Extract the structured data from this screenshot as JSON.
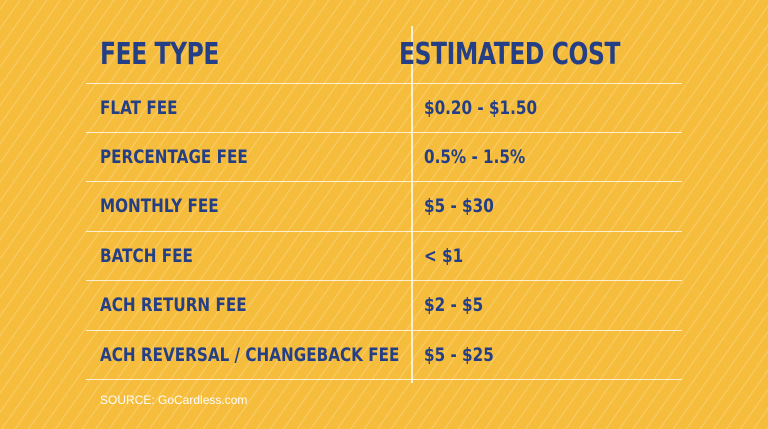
{
  "table": {
    "headers": [
      "FEE TYPE",
      "ESTIMATED COST"
    ],
    "rows": [
      {
        "fee_type": "FLAT FEE",
        "cost": "$0.20 - $1.50"
      },
      {
        "fee_type": "PERCENTAGE FEE",
        "cost": "0.5% - 1.5%"
      },
      {
        "fee_type": "MONTHLY FEE",
        "cost": "$5 - $30"
      },
      {
        "fee_type": "BATCH FEE",
        "cost": "< $1"
      },
      {
        "fee_type": "ACH RETURN FEE",
        "cost": "$2 - $5"
      },
      {
        "fee_type": "ACH REVERSAL / CHANGEBACK FEE",
        "cost": "$5 - $25"
      }
    ]
  },
  "source": "SOURCE: GoCardless.com",
  "colors": {
    "background": "#f6bd3c",
    "text": "#243f86",
    "lines": "#ffffff"
  }
}
